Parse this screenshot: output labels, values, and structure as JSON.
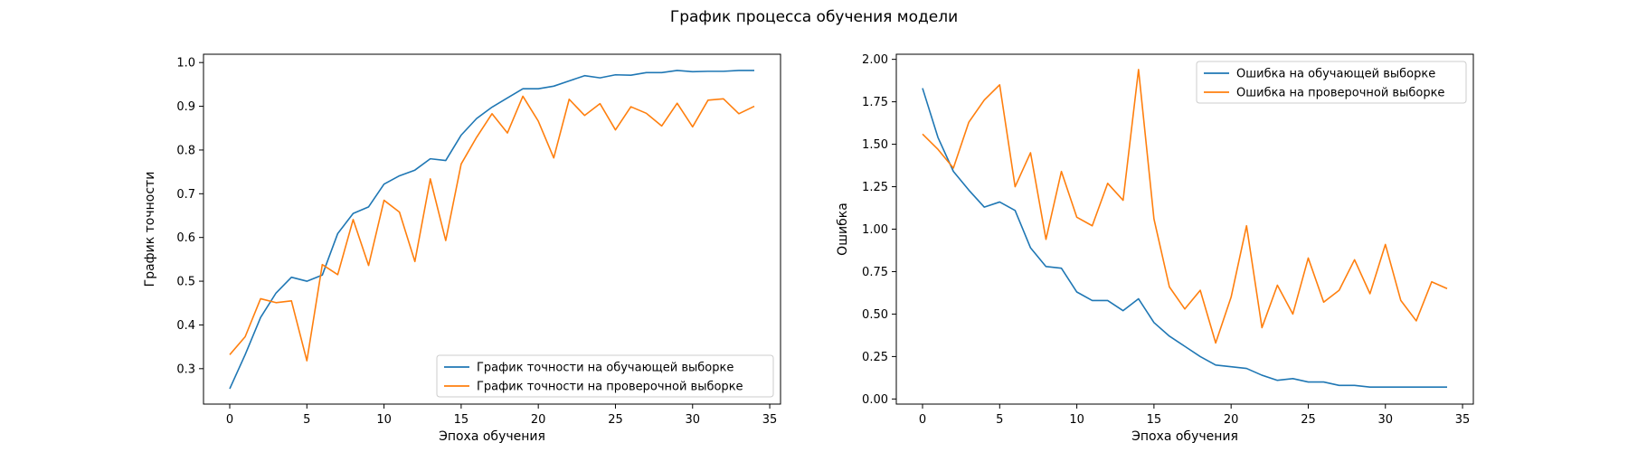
{
  "figure": {
    "suptitle": "График процесса обучения модели"
  },
  "chart_data": [
    {
      "type": "line",
      "xlabel": "Эпоха обучения",
      "ylabel": "График точности",
      "xlim": [
        -1.7,
        35.7
      ],
      "ylim": [
        0.219,
        1.019
      ],
      "xticks": [
        0,
        5,
        10,
        15,
        20,
        25,
        30,
        35
      ],
      "yticks": [
        0.3,
        0.4,
        0.5,
        0.6,
        0.7,
        0.8,
        0.9,
        1.0
      ],
      "xtick_labels": [
        "0",
        "5",
        "10",
        "15",
        "20",
        "25",
        "30",
        "35"
      ],
      "ytick_labels": [
        "0.3",
        "0.4",
        "0.5",
        "0.6",
        "0.7",
        "0.8",
        "0.9",
        "1.0"
      ],
      "grid": false,
      "legend": "lower-right",
      "x": [
        0,
        1,
        2,
        3,
        4,
        5,
        6,
        7,
        8,
        9,
        10,
        11,
        12,
        13,
        14,
        15,
        16,
        17,
        18,
        19,
        20,
        21,
        22,
        23,
        24,
        25,
        26,
        27,
        28,
        29,
        30,
        31,
        32,
        33,
        34
      ],
      "series": [
        {
          "name": "График точности на обучающей выборке",
          "color": "#1f77b4",
          "values": [
            0.254,
            0.332,
            0.417,
            0.473,
            0.509,
            0.5,
            0.514,
            0.609,
            0.655,
            0.67,
            0.722,
            0.741,
            0.754,
            0.78,
            0.776,
            0.834,
            0.872,
            0.898,
            0.919,
            0.94,
            0.94,
            0.946,
            0.958,
            0.97,
            0.965,
            0.972,
            0.971,
            0.977,
            0.977,
            0.982,
            0.979,
            0.98,
            0.98,
            0.982,
            0.982
          ]
        },
        {
          "name": "График точности на проверочной выборке",
          "color": "#ff7f0e",
          "values": [
            0.332,
            0.373,
            0.46,
            0.451,
            0.455,
            0.318,
            0.538,
            0.515,
            0.641,
            0.536,
            0.685,
            0.658,
            0.545,
            0.734,
            0.593,
            0.768,
            0.829,
            0.883,
            0.839,
            0.923,
            0.866,
            0.782,
            0.916,
            0.879,
            0.906,
            0.846,
            0.899,
            0.884,
            0.855,
            0.907,
            0.853,
            0.914,
            0.917,
            0.883,
            0.9
          ]
        }
      ]
    },
    {
      "type": "line",
      "xlabel": "Эпоха обучения",
      "ylabel": "Ошибка",
      "xlim": [
        -1.7,
        35.7
      ],
      "ylim": [
        -0.03,
        2.03
      ],
      "xticks": [
        0,
        5,
        10,
        15,
        20,
        25,
        30,
        35
      ],
      "yticks": [
        0.0,
        0.25,
        0.5,
        0.75,
        1.0,
        1.25,
        1.5,
        1.75,
        2.0
      ],
      "xtick_labels": [
        "0",
        "5",
        "10",
        "15",
        "20",
        "25",
        "30",
        "35"
      ],
      "ytick_labels": [
        "0.00",
        "0.25",
        "0.50",
        "0.75",
        "1.00",
        "1.25",
        "1.50",
        "1.75",
        "2.00"
      ],
      "grid": false,
      "legend": "upper-right",
      "x": [
        0,
        1,
        2,
        3,
        4,
        5,
        6,
        7,
        8,
        9,
        10,
        11,
        12,
        13,
        14,
        15,
        16,
        17,
        18,
        19,
        20,
        21,
        22,
        23,
        24,
        25,
        26,
        27,
        28,
        29,
        30,
        31,
        32,
        33,
        34
      ],
      "series": [
        {
          "name": "Ошибка на обучающей выборке",
          "color": "#1f77b4",
          "values": [
            1.83,
            1.54,
            1.34,
            1.23,
            1.13,
            1.16,
            1.11,
            0.89,
            0.78,
            0.77,
            0.63,
            0.58,
            0.58,
            0.52,
            0.59,
            0.45,
            0.37,
            0.31,
            0.25,
            0.2,
            0.19,
            0.18,
            0.14,
            0.11,
            0.12,
            0.1,
            0.1,
            0.08,
            0.08,
            0.07,
            0.07,
            0.07,
            0.07,
            0.07,
            0.07
          ]
        },
        {
          "name": "Ошибка на проверочной выборке",
          "color": "#ff7f0e",
          "values": [
            1.56,
            1.47,
            1.36,
            1.63,
            1.76,
            1.85,
            1.25,
            1.45,
            0.94,
            1.34,
            1.07,
            1.02,
            1.27,
            1.17,
            1.94,
            1.06,
            0.66,
            0.53,
            0.64,
            0.33,
            0.6,
            1.02,
            0.42,
            0.67,
            0.5,
            0.83,
            0.57,
            0.64,
            0.82,
            0.62,
            0.91,
            0.58,
            0.46,
            0.69,
            0.65
          ]
        }
      ]
    }
  ]
}
